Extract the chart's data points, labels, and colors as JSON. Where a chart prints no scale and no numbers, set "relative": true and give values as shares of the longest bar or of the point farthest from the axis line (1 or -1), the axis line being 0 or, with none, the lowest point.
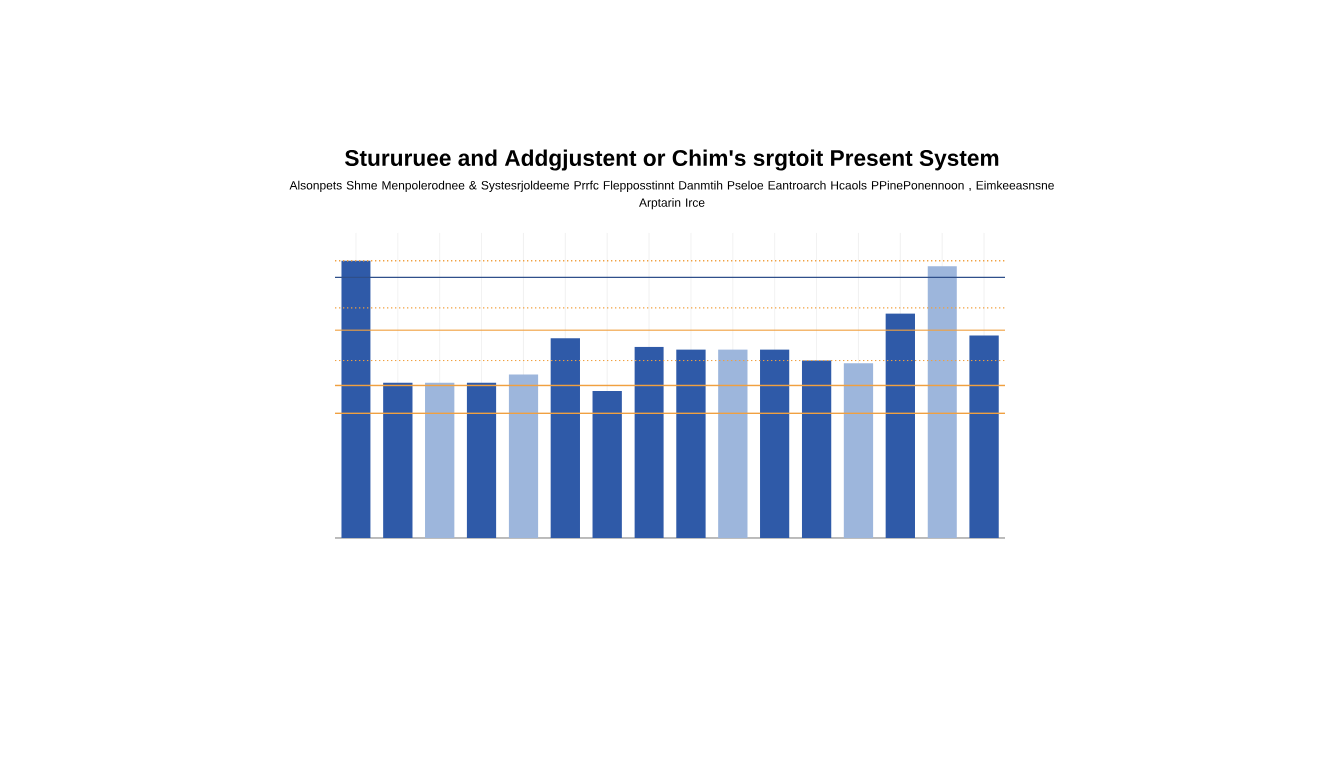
{
  "chart_data": {
    "type": "bar",
    "relative": true,
    "title": "Stururuee and Addgjustent or Chim's srgtoit Present System",
    "subtitle": "Alsonpets Shme Menpolerodnee & Systesrjoldeeme Prrfc Flepposstinnt Danmtih Pseloe Eantroarch Hcaols PPinePonennoon , Eimkeeasnsne Arptarin Irce",
    "categories": [
      null,
      null,
      null,
      null,
      null,
      null,
      null,
      null,
      null,
      null,
      null,
      null,
      null,
      null,
      null,
      null
    ],
    "values": [
      1,
      0.56,
      0.56,
      0.56,
      0.59,
      0.72,
      0.53,
      0.69,
      0.68,
      0.68,
      0.68,
      0.64,
      0.63,
      0.81,
      0.98,
      0.73
    ],
    "colors": [
      "#2f5aa8",
      "#2f5aa8",
      "#9db6dc",
      "#2f5aa8",
      "#9db6dc",
      "#2f5aa8",
      "#2f5aa8",
      "#2f5aa8",
      "#2f5aa8",
      "#9db6dc",
      "#2f5aa8",
      "#2f5aa8",
      "#9db6dc",
      "#2f5aa8",
      "#9db6dc",
      "#2f5aa8"
    ],
    "ref_lines": [
      {
        "axis": "y",
        "value": 1,
        "color": "#f0a040",
        "line_style": "dotted"
      },
      {
        "axis": "y",
        "value": 0.94,
        "color": "#2f4f8a",
        "line_style": "solid"
      },
      {
        "axis": "y",
        "value": 0.83,
        "color": "#f0a040",
        "line_style": "dotted"
      },
      {
        "axis": "y",
        "value": 0.75,
        "color": "#f0a040",
        "line_style": "solid"
      },
      {
        "axis": "y",
        "value": 0.64,
        "color": "#f0a040",
        "line_style": "dotted"
      },
      {
        "axis": "y",
        "value": 0.55,
        "color": "#f0a040",
        "line_style": "solid"
      },
      {
        "axis": "y",
        "value": 0.45,
        "color": "#f0a040",
        "line_style": "solid"
      }
    ],
    "grid": "x"
  }
}
